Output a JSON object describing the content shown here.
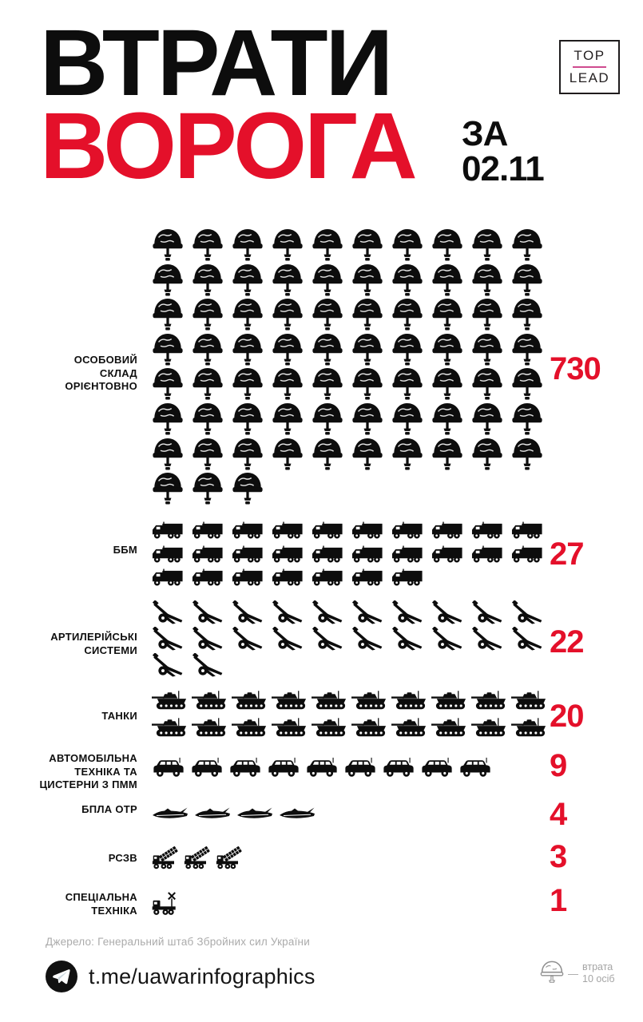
{
  "header": {
    "title_line1": "ВТРАТИ",
    "title_line2": "ВОРОГА",
    "date_prefix": "ЗА",
    "date": "02.11",
    "logo_top": "TOP",
    "logo_bottom": "LEAD"
  },
  "colors": {
    "accent_red": "#e4102a",
    "logo_pink": "#cf4b8f",
    "icon_black": "#0d0d0d",
    "muted_gray": "#ababab"
  },
  "chart_data": {
    "type": "pictogram",
    "title": "ВТРАТИ ВОРОГА ЗА 02.11",
    "categories": [
      "ОСОБОВИЙ СКЛАД ОРІЄНТОВНО",
      "ББМ",
      "АРТИЛЕРІЙСЬКІ СИСТЕМИ",
      "ТАНКИ",
      "АВТОМОБІЛЬНА ТЕХНІКА ТА ЦИСТЕРНИ З ПММ",
      "БПЛА ОТР",
      "РСЗВ",
      "СПЕЦІАЛЬНА ТЕХНІКА"
    ],
    "values": [
      730,
      27,
      22,
      20,
      9,
      4,
      3,
      1
    ],
    "icons_per_row": 10,
    "icon_counts": [
      73,
      27,
      22,
      20,
      9,
      4,
      3,
      1
    ],
    "unit_note": "1 helmet icon = 10 persons; all other icons = 1 unit",
    "value_color": "#e4102a",
    "legend_position": "bottom-right"
  },
  "rows": [
    {
      "id": "personnel",
      "label": "ОСОБОВИЙ\nСКЛАД\nОРІЄНТОВНО",
      "value": "730",
      "icon": "helmet",
      "icon_count": 73
    },
    {
      "id": "bbm",
      "label": "ББМ",
      "value": "27",
      "icon": "apc",
      "icon_count": 27
    },
    {
      "id": "artillery",
      "label": "АРТИЛЕРІЙСЬКІ\nСИСТЕМИ",
      "value": "22",
      "icon": "artillery",
      "icon_count": 22
    },
    {
      "id": "tanks",
      "label": "ТАНКИ",
      "value": "20",
      "icon": "tank",
      "icon_count": 20
    },
    {
      "id": "auto",
      "label": "АВТОМОБІЛЬНА\nТЕХНІКА ТА\nЦИСТЕРНИ З ПММ",
      "value": "9",
      "icon": "jeep",
      "icon_count": 9
    },
    {
      "id": "uav",
      "label": "БПЛА ОТР",
      "value": "4",
      "icon": "drone",
      "icon_count": 4
    },
    {
      "id": "mlrs",
      "label": "РСЗВ",
      "value": "3",
      "icon": "mlrs",
      "icon_count": 3
    },
    {
      "id": "special",
      "label": "СПЕЦІАЛЬНА\nТЕХНІКА",
      "value": "1",
      "icon": "special-vehicle",
      "icon_count": 1
    }
  ],
  "footer": {
    "source": "Джерело: Генеральний штаб Збройних сил України",
    "telegram": "t.me/uawarinfographics",
    "legend_dash": "—",
    "legend_text": "втрата\n10 осіб"
  }
}
